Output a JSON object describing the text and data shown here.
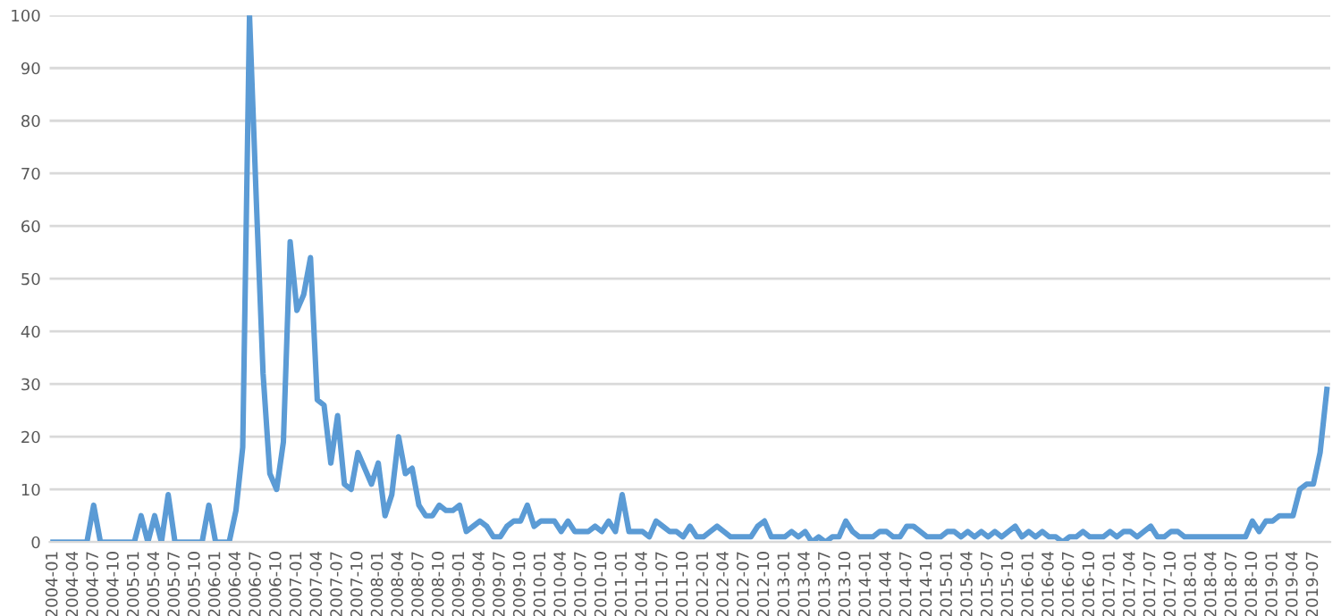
{
  "chart_data": {
    "type": "line",
    "categories": [
      "2004-01",
      null,
      null,
      "2004-04",
      null,
      null,
      "2004-07",
      null,
      null,
      "2004-10",
      null,
      null,
      "2005-01",
      null,
      null,
      "2005-04",
      null,
      null,
      "2005-07",
      null,
      null,
      "2005-10",
      null,
      null,
      "2006-01",
      null,
      null,
      "2006-04",
      null,
      null,
      "2006-07",
      null,
      null,
      "2006-10",
      null,
      null,
      "2007-01",
      null,
      null,
      "2007-04",
      null,
      null,
      "2007-07",
      null,
      null,
      "2007-10",
      null,
      null,
      "2008-01",
      null,
      null,
      "2008-04",
      null,
      null,
      "2008-07",
      null,
      null,
      "2008-10",
      null,
      null,
      "2009-01",
      null,
      null,
      "2009-04",
      null,
      null,
      "2009-07",
      null,
      null,
      "2009-10",
      null,
      null,
      "2010-01",
      null,
      null,
      "2010-04",
      null,
      null,
      "2010-07",
      null,
      null,
      "2010-10",
      null,
      null,
      "2011-01",
      null,
      null,
      "2011-04",
      null,
      null,
      "2011-07",
      null,
      null,
      "2011-10",
      null,
      null,
      "2012-01",
      null,
      null,
      "2012-04",
      null,
      null,
      "2012-07",
      null,
      null,
      "2012-10",
      null,
      null,
      "2013-01",
      null,
      null,
      "2013-04",
      null,
      null,
      "2013-07",
      null,
      null,
      "2013-10",
      null,
      null,
      "2014-01",
      null,
      null,
      "2014-04",
      null,
      null,
      "2014-07",
      null,
      null,
      "2014-10",
      null,
      null,
      "2015-01",
      null,
      null,
      "2015-04",
      null,
      null,
      "2015-07",
      null,
      null,
      "2015-10",
      null,
      null,
      "2016-01",
      null,
      null,
      "2016-04",
      null,
      null,
      "2016-07",
      null,
      null,
      "2016-10",
      null,
      null,
      "2017-01",
      null,
      null,
      "2017-04",
      null,
      null,
      "2017-07",
      null,
      null,
      "2017-10",
      null,
      null,
      "2018-01",
      null,
      null,
      "2018-04",
      null,
      null,
      "2018-07",
      null,
      null,
      "2018-10",
      null,
      null,
      "2019-01",
      null,
      null,
      "2019-04",
      null,
      null,
      "2019-07",
      null,
      null
    ],
    "series": [
      {
        "color": "#5b9bd5",
        "values": [
          0,
          0,
          0,
          0,
          0,
          0,
          7,
          0,
          0,
          0,
          0,
          0,
          0,
          5,
          0,
          5,
          0,
          9,
          0,
          0,
          0,
          0,
          0,
          7,
          0,
          0,
          0,
          6,
          18,
          100,
          65,
          32,
          13,
          10,
          19,
          57,
          44,
          47,
          54,
          27,
          26,
          15,
          24,
          11,
          10,
          17,
          14,
          11,
          15,
          5,
          9,
          20,
          13,
          14,
          7,
          5,
          5,
          7,
          6,
          6,
          7,
          2,
          3,
          4,
          3,
          1,
          1,
          3,
          4,
          4,
          7,
          3,
          4,
          4,
          4,
          2,
          4,
          2,
          2,
          2,
          3,
          2,
          4,
          2,
          9,
          2,
          2,
          2,
          1,
          4,
          3,
          2,
          2,
          1,
          3,
          1,
          1,
          2,
          3,
          2,
          1,
          1,
          1,
          1,
          3,
          4,
          1,
          1,
          1,
          2,
          1,
          2,
          0,
          1,
          0,
          1,
          1,
          4,
          2,
          1,
          1,
          1,
          2,
          2,
          1,
          1,
          3,
          3,
          2,
          1,
          1,
          1,
          2,
          2,
          1,
          2,
          1,
          2,
          1,
          2,
          1,
          2,
          3,
          1,
          2,
          1,
          2,
          1,
          1,
          0,
          1,
          1,
          2,
          1,
          1,
          1,
          2,
          1,
          2,
          2,
          1,
          2,
          3,
          1,
          1,
          2,
          2,
          1,
          1,
          1,
          1,
          1,
          1,
          1,
          1,
          1,
          1,
          4,
          2,
          4,
          4,
          5,
          5,
          5,
          10,
          11,
          11,
          17,
          29
        ]
      }
    ],
    "ylim": [
      0,
      100
    ],
    "yticks": [
      0,
      10,
      20,
      30,
      40,
      50,
      60,
      70,
      80,
      90,
      100
    ],
    "grid": "y",
    "marker": "none",
    "line_style": "solid"
  }
}
